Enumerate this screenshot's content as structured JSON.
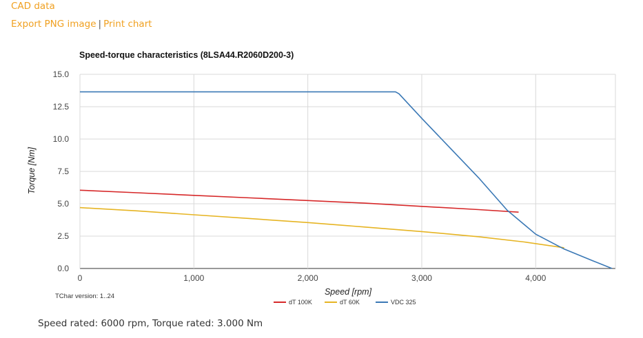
{
  "links": {
    "cad": "CAD data",
    "export_png": "Export PNG image",
    "separator": "|",
    "print_chart": "Print chart"
  },
  "footer": "Speed rated: 6000 rpm, Torque rated: 3.000 Nm",
  "chart_data": {
    "type": "line",
    "title": "Speed-torque characteristics (8LSA44.R2060D200-3)",
    "xlabel": "Speed [rpm]",
    "ylabel": "Torque [Nm]",
    "xlim": [
      0,
      4700
    ],
    "ylim": [
      0,
      15
    ],
    "x_ticks": [
      0,
      1000,
      2000,
      3000,
      4000
    ],
    "x_tick_labels": [
      "0",
      "1,000",
      "2,000",
      "3,000",
      "4,000"
    ],
    "y_ticks": [
      0,
      2.5,
      5,
      7.5,
      10,
      12.5,
      15
    ],
    "y_tick_labels": [
      "0.0",
      "2.5",
      "5.0",
      "7.5",
      "10.0",
      "12.5",
      "15.0"
    ],
    "grid": true,
    "legend_position": "bottom",
    "annotation": "TChar version: 1..24",
    "series": [
      {
        "name": "dT 100K",
        "color": "#d62728",
        "points": [
          [
            0,
            6.05
          ],
          [
            500,
            5.85
          ],
          [
            1000,
            5.65
          ],
          [
            1500,
            5.45
          ],
          [
            2000,
            5.25
          ],
          [
            2500,
            5.05
          ],
          [
            3000,
            4.8
          ],
          [
            3500,
            4.55
          ],
          [
            3850,
            4.35
          ]
        ]
      },
      {
        "name": "dT 60K",
        "color": "#e6b422",
        "points": [
          [
            0,
            4.7
          ],
          [
            500,
            4.45
          ],
          [
            1000,
            4.15
          ],
          [
            1500,
            3.85
          ],
          [
            2000,
            3.55
          ],
          [
            2500,
            3.2
          ],
          [
            3000,
            2.85
          ],
          [
            3500,
            2.45
          ],
          [
            3900,
            2.05
          ],
          [
            4250,
            1.6
          ]
        ]
      },
      {
        "name": "VDC 325",
        "color": "#3a78b5",
        "points": [
          [
            0,
            13.65
          ],
          [
            2770,
            13.65
          ],
          [
            2800,
            13.5
          ],
          [
            3000,
            11.6
          ],
          [
            3250,
            9.3
          ],
          [
            3500,
            7.0
          ],
          [
            3750,
            4.5
          ],
          [
            4000,
            2.65
          ],
          [
            4250,
            1.5
          ],
          [
            4500,
            0.6
          ],
          [
            4670,
            0.0
          ]
        ]
      }
    ]
  }
}
